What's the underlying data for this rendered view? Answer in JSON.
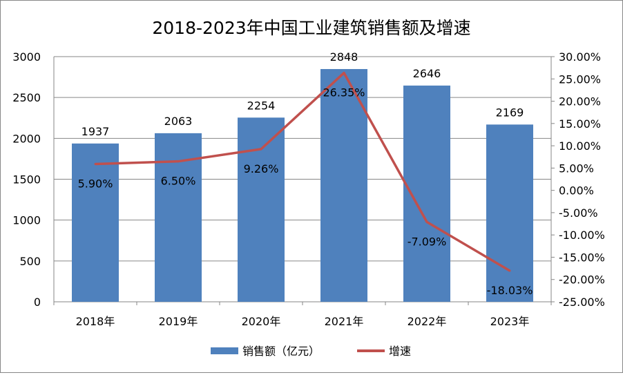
{
  "chart_data": {
    "type": "bar+line",
    "title": "2018-2023年中国工业建筑销售额及增速",
    "categories": [
      "2018年",
      "2019年",
      "2020年",
      "2021年",
      "2022年",
      "2023年"
    ],
    "series": [
      {
        "name": "销售额（亿元）",
        "type": "bar",
        "axis": "left",
        "color": "#4F81BD",
        "values": [
          1937,
          2063,
          2254,
          2848,
          2646,
          2169
        ],
        "labels": [
          "1937",
          "2063",
          "2254",
          "2848",
          "2646",
          "2169"
        ]
      },
      {
        "name": "增速",
        "type": "line",
        "axis": "right",
        "color": "#C0504D",
        "values": [
          5.9,
          6.5,
          9.26,
          26.35,
          -7.09,
          -18.03
        ],
        "labels": [
          "5.90%",
          "6.50%",
          "9.26%",
          "26.35%",
          "-7.09%",
          "-18.03%"
        ]
      }
    ],
    "y_left": {
      "range": [
        0,
        3000
      ],
      "ticks": [
        "0",
        "500",
        "1000",
        "1500",
        "2000",
        "2500",
        "3000"
      ]
    },
    "y_right": {
      "range": [
        -25,
        30
      ],
      "ticks": [
        "-25.00%",
        "-20.00%",
        "-15.00%",
        "-10.00%",
        "-5.00%",
        "0.00%",
        "5.00%",
        "10.00%",
        "15.00%",
        "20.00%",
        "25.00%",
        "30.00%"
      ]
    },
    "grid": true,
    "legend": "bottom"
  }
}
